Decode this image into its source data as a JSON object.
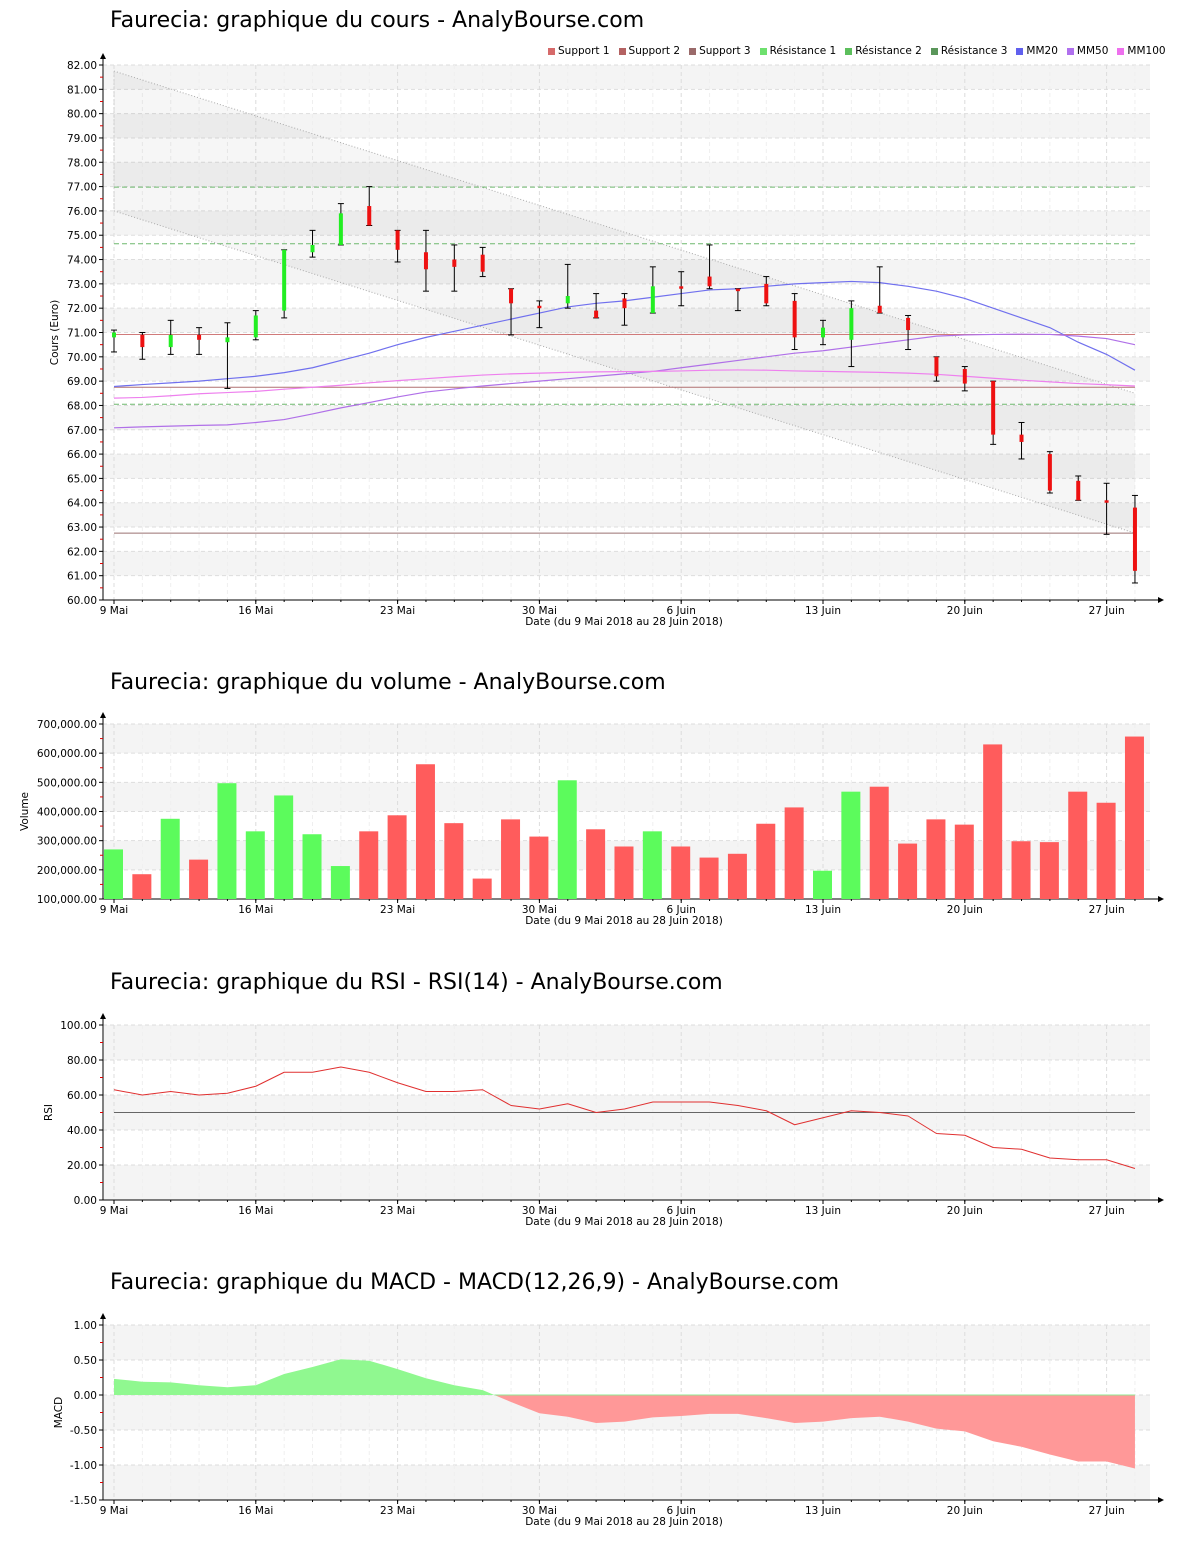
{
  "titles": {
    "price": "Faurecia: graphique du cours - AnalyBourse.com",
    "volume": "Faurecia: graphique du volume - AnalyBourse.com",
    "rsi": "Faurecia: graphique du RSI - RSI(14) - AnalyBourse.com",
    "macd": "Faurecia: graphique du MACD - MACD(12,26,9) - AnalyBourse.com"
  },
  "legend": [
    {
      "label": "Support 1",
      "color": "#d66a6a"
    },
    {
      "label": "Support 2",
      "color": "#b46262"
    },
    {
      "label": "Support 3",
      "color": "#9a6a6a"
    },
    {
      "label": "Résistance 1",
      "color": "#6ee06e"
    },
    {
      "label": "Résistance 2",
      "color": "#5cbf5c"
    },
    {
      "label": "Résistance 3",
      "color": "#5a965a"
    },
    {
      "label": "MM20",
      "color": "#6060ee"
    },
    {
      "label": "MM50",
      "color": "#b070ee"
    },
    {
      "label": "MM100",
      "color": "#ee70ee"
    }
  ],
  "x_axis": {
    "label": "Date (du 9 Mai 2018 au 28 Juin 2018)",
    "ticks": [
      {
        "label": "9 Mai",
        "index": 0
      },
      {
        "label": "16 Mai",
        "index": 5
      },
      {
        "label": "23 Mai",
        "index": 10
      },
      {
        "label": "30 Mai",
        "index": 15
      },
      {
        "label": "6 Juin",
        "index": 20
      },
      {
        "label": "13 Juin",
        "index": 25
      },
      {
        "label": "20 Juin",
        "index": 30
      },
      {
        "label": "27 Juin",
        "index": 35
      }
    ]
  },
  "chart_data": [
    {
      "type": "candlestick",
      "title": "Faurecia: graphique du cours - AnalyBourse.com",
      "xlabel": "Date (du 9 Mai 2018 au 28 Juin 2018)",
      "ylabel": "Cours (Euro)",
      "ylim": [
        60,
        82
      ],
      "yticks": [
        "60.00",
        "61.00",
        "62.00",
        "63.00",
        "64.00",
        "65.00",
        "66.00",
        "67.00",
        "68.00",
        "69.00",
        "70.00",
        "71.00",
        "72.00",
        "73.00",
        "74.00",
        "75.00",
        "76.00",
        "77.00",
        "78.00",
        "79.00",
        "80.00",
        "81.00",
        "82.00"
      ],
      "candles": [
        {
          "o": 70.8,
          "h": 71.1,
          "l": 70.2,
          "c": 71.0,
          "dir": "up"
        },
        {
          "o": 70.9,
          "h": 71.0,
          "l": 69.9,
          "c": 70.4,
          "dir": "down"
        },
        {
          "o": 70.4,
          "h": 71.5,
          "l": 70.1,
          "c": 70.9,
          "dir": "up"
        },
        {
          "o": 70.9,
          "h": 71.2,
          "l": 70.1,
          "c": 70.7,
          "dir": "down"
        },
        {
          "o": 70.6,
          "h": 71.4,
          "l": 68.7,
          "c": 70.8,
          "dir": "up"
        },
        {
          "o": 70.8,
          "h": 71.9,
          "l": 70.7,
          "c": 71.7,
          "dir": "up"
        },
        {
          "o": 71.9,
          "h": 74.4,
          "l": 71.6,
          "c": 74.4,
          "dir": "up"
        },
        {
          "o": 74.3,
          "h": 75.2,
          "l": 74.1,
          "c": 74.6,
          "dir": "up"
        },
        {
          "o": 74.6,
          "h": 76.3,
          "l": 74.6,
          "c": 75.9,
          "dir": "up"
        },
        {
          "o": 76.2,
          "h": 77.0,
          "l": 75.4,
          "c": 75.4,
          "dir": "down"
        },
        {
          "o": 75.2,
          "h": 75.2,
          "l": 73.9,
          "c": 74.4,
          "dir": "down"
        },
        {
          "o": 74.3,
          "h": 75.2,
          "l": 72.7,
          "c": 73.6,
          "dir": "down"
        },
        {
          "o": 74.0,
          "h": 74.6,
          "l": 72.7,
          "c": 73.7,
          "dir": "down"
        },
        {
          "o": 74.2,
          "h": 74.5,
          "l": 73.3,
          "c": 73.5,
          "dir": "down"
        },
        {
          "o": 72.8,
          "h": 72.8,
          "l": 70.9,
          "c": 72.2,
          "dir": "down"
        },
        {
          "o": 72.1,
          "h": 72.3,
          "l": 71.2,
          "c": 72.0,
          "dir": "down"
        },
        {
          "o": 72.2,
          "h": 73.8,
          "l": 72.0,
          "c": 72.5,
          "dir": "up"
        },
        {
          "o": 71.9,
          "h": 72.6,
          "l": 71.6,
          "c": 71.6,
          "dir": "down"
        },
        {
          "o": 72.4,
          "h": 72.6,
          "l": 71.3,
          "c": 72.0,
          "dir": "down"
        },
        {
          "o": 71.8,
          "h": 73.7,
          "l": 71.8,
          "c": 72.9,
          "dir": "up"
        },
        {
          "o": 72.9,
          "h": 73.5,
          "l": 72.1,
          "c": 72.8,
          "dir": "down"
        },
        {
          "o": 73.3,
          "h": 74.6,
          "l": 72.8,
          "c": 72.9,
          "dir": "down"
        },
        {
          "o": 72.8,
          "h": 72.8,
          "l": 71.9,
          "c": 72.7,
          "dir": "down"
        },
        {
          "o": 73.0,
          "h": 73.3,
          "l": 72.1,
          "c": 72.2,
          "dir": "down"
        },
        {
          "o": 72.3,
          "h": 72.6,
          "l": 70.3,
          "c": 70.8,
          "dir": "down"
        },
        {
          "o": 70.8,
          "h": 71.5,
          "l": 70.5,
          "c": 71.2,
          "dir": "up"
        },
        {
          "o": 70.7,
          "h": 72.3,
          "l": 69.6,
          "c": 72.0,
          "dir": "up"
        },
        {
          "o": 72.1,
          "h": 73.7,
          "l": 71.8,
          "c": 71.8,
          "dir": "down"
        },
        {
          "o": 71.6,
          "h": 71.7,
          "l": 70.3,
          "c": 71.1,
          "dir": "down"
        },
        {
          "o": 70.0,
          "h": 70.0,
          "l": 69.0,
          "c": 69.2,
          "dir": "down"
        },
        {
          "o": 69.5,
          "h": 69.6,
          "l": 68.6,
          "c": 68.9,
          "dir": "down"
        },
        {
          "o": 69.0,
          "h": 69.0,
          "l": 66.4,
          "c": 66.8,
          "dir": "down"
        },
        {
          "o": 66.8,
          "h": 67.3,
          "l": 65.8,
          "c": 66.5,
          "dir": "down"
        },
        {
          "o": 66.0,
          "h": 66.1,
          "l": 64.4,
          "c": 64.5,
          "dir": "down"
        },
        {
          "o": 64.9,
          "h": 65.1,
          "l": 64.1,
          "c": 64.1,
          "dir": "down"
        },
        {
          "o": 64.1,
          "h": 64.8,
          "l": 62.7,
          "c": 64.0,
          "dir": "down"
        },
        {
          "o": 63.8,
          "h": 64.3,
          "l": 60.7,
          "c": 61.2,
          "dir": "down"
        }
      ],
      "horizontal_lines": [
        {
          "name": "Support 1",
          "value": 70.92,
          "color": "#d07a7a",
          "style": "solid"
        },
        {
          "name": "Support 2",
          "value": 68.75,
          "color": "#b07070",
          "style": "solid"
        },
        {
          "name": "Support 3",
          "value": 62.75,
          "color": "#9a7070",
          "style": "solid"
        },
        {
          "name": "Résistance 1",
          "value": 68.05,
          "color": "#6eb86e",
          "style": "dashed"
        },
        {
          "name": "Résistance 2",
          "value": 74.65,
          "color": "#6eb86e",
          "style": "dashed"
        },
        {
          "name": "Résistance 3",
          "value": 76.98,
          "color": "#6eb86e",
          "style": "dashed"
        }
      ],
      "moving_averages": {
        "MM20": [
          68.78,
          68.86,
          68.93,
          69.0,
          69.1,
          69.2,
          69.35,
          69.55,
          69.85,
          70.15,
          70.5,
          70.8,
          71.05,
          71.3,
          71.55,
          71.8,
          72.05,
          72.2,
          72.3,
          72.45,
          72.6,
          72.75,
          72.8,
          72.9,
          73.0,
          73.05,
          73.1,
          73.05,
          72.9,
          72.7,
          72.4,
          72.0,
          71.6,
          71.2,
          70.6,
          70.1,
          69.45
        ],
        "MM50": [
          67.08,
          67.12,
          67.15,
          67.18,
          67.2,
          67.3,
          67.42,
          67.65,
          67.9,
          68.12,
          68.35,
          68.55,
          68.68,
          68.8,
          68.9,
          69.0,
          69.1,
          69.2,
          69.3,
          69.4,
          69.55,
          69.7,
          69.85,
          70.0,
          70.15,
          70.25,
          70.4,
          70.55,
          70.7,
          70.85,
          70.9,
          70.92,
          70.93,
          70.92,
          70.85,
          70.75,
          70.5
        ],
        "MM100": [
          68.3,
          68.33,
          68.4,
          68.48,
          68.53,
          68.58,
          68.67,
          68.75,
          68.83,
          68.93,
          69.02,
          69.1,
          69.18,
          69.25,
          69.3,
          69.33,
          69.36,
          69.38,
          69.39,
          69.4,
          69.42,
          69.45,
          69.46,
          69.45,
          69.42,
          69.4,
          69.38,
          69.36,
          69.33,
          69.28,
          69.2,
          69.12,
          69.04,
          68.97,
          68.9,
          68.85,
          68.8
        ]
      },
      "trend_channel": {
        "upper": {
          "start": 81.75,
          "end": 68.5
        },
        "lower": {
          "start": 76.0,
          "end": 62.75
        }
      }
    },
    {
      "type": "bar",
      "title": "Faurecia: graphique du volume - AnalyBourse.com",
      "xlabel": "Date (du 9 Mai 2018 au 28 Juin 2018)",
      "ylabel": "Volume",
      "ylim": [
        100000,
        700000
      ],
      "yticks": [
        "100,000.00",
        "200,000.00",
        "300,000.00",
        "400,000.00",
        "500,000.00",
        "600,000.00",
        "700,000.00"
      ],
      "values": [
        270000,
        185000,
        375000,
        235000,
        497000,
        332000,
        455000,
        322000,
        213000,
        332000,
        387000,
        562000,
        360000,
        170000,
        373000,
        314000,
        507000,
        339000,
        280000,
        332000,
        280000,
        242000,
        255000,
        358000,
        414000,
        197000,
        468000,
        485000,
        290000,
        373000,
        355000,
        630000,
        298000,
        295000,
        468000,
        430000,
        657000
      ],
      "colors": [
        "up",
        "down",
        "up",
        "down",
        "up",
        "up",
        "up",
        "up",
        "up",
        "down",
        "down",
        "down",
        "down",
        "down",
        "down",
        "down",
        "up",
        "down",
        "down",
        "up",
        "down",
        "down",
        "down",
        "down",
        "down",
        "up",
        "up",
        "down",
        "down",
        "down",
        "down",
        "down",
        "down",
        "down",
        "down",
        "down",
        "down"
      ],
      "up_color": "#5cfb5c",
      "down_color": "#ff5c5c"
    },
    {
      "type": "line",
      "title": "Faurecia: graphique du RSI - RSI(14) - AnalyBourse.com",
      "xlabel": "Date (du 9 Mai 2018 au 28 Juin 2018)",
      "ylabel": "RSI",
      "ylim": [
        0,
        100
      ],
      "yticks": [
        "0.00",
        "20.00",
        "40.00",
        "60.00",
        "80.00",
        "100.00"
      ],
      "reference_line": 50,
      "values": [
        63,
        60,
        62,
        60,
        61,
        65,
        73,
        73,
        76,
        73,
        67,
        62,
        62,
        63,
        54,
        52,
        55,
        50,
        52,
        56,
        56,
        56,
        54,
        51,
        43,
        47,
        51,
        50,
        48,
        38,
        37,
        30,
        29,
        24,
        23,
        23,
        18
      ],
      "line_color": "#e03030"
    },
    {
      "type": "area",
      "title": "Faurecia: graphique du MACD - MACD(12,26,9) - AnalyBourse.com",
      "xlabel": "Date (du 9 Mai 2018 au 28 Juin 2018)",
      "ylabel": "MACD",
      "ylim": [
        -1.5,
        1.0
      ],
      "yticks": [
        "-1.50",
        "-1.00",
        "-0.50",
        "0.00",
        "0.50",
        "1.00"
      ],
      "values": [
        0.23,
        0.19,
        0.18,
        0.14,
        0.11,
        0.14,
        0.3,
        0.4,
        0.51,
        0.49,
        0.37,
        0.24,
        0.14,
        0.07,
        -0.1,
        -0.26,
        -0.31,
        -0.4,
        -0.38,
        -0.32,
        -0.3,
        -0.27,
        -0.27,
        -0.33,
        -0.4,
        -0.38,
        -0.33,
        -0.31,
        -0.38,
        -0.48,
        -0.52,
        -0.66,
        -0.74,
        -0.85,
        -0.95,
        -0.95,
        -1.05
      ],
      "positive_color": "#90f890",
      "negative_color": "#ff9898"
    }
  ]
}
